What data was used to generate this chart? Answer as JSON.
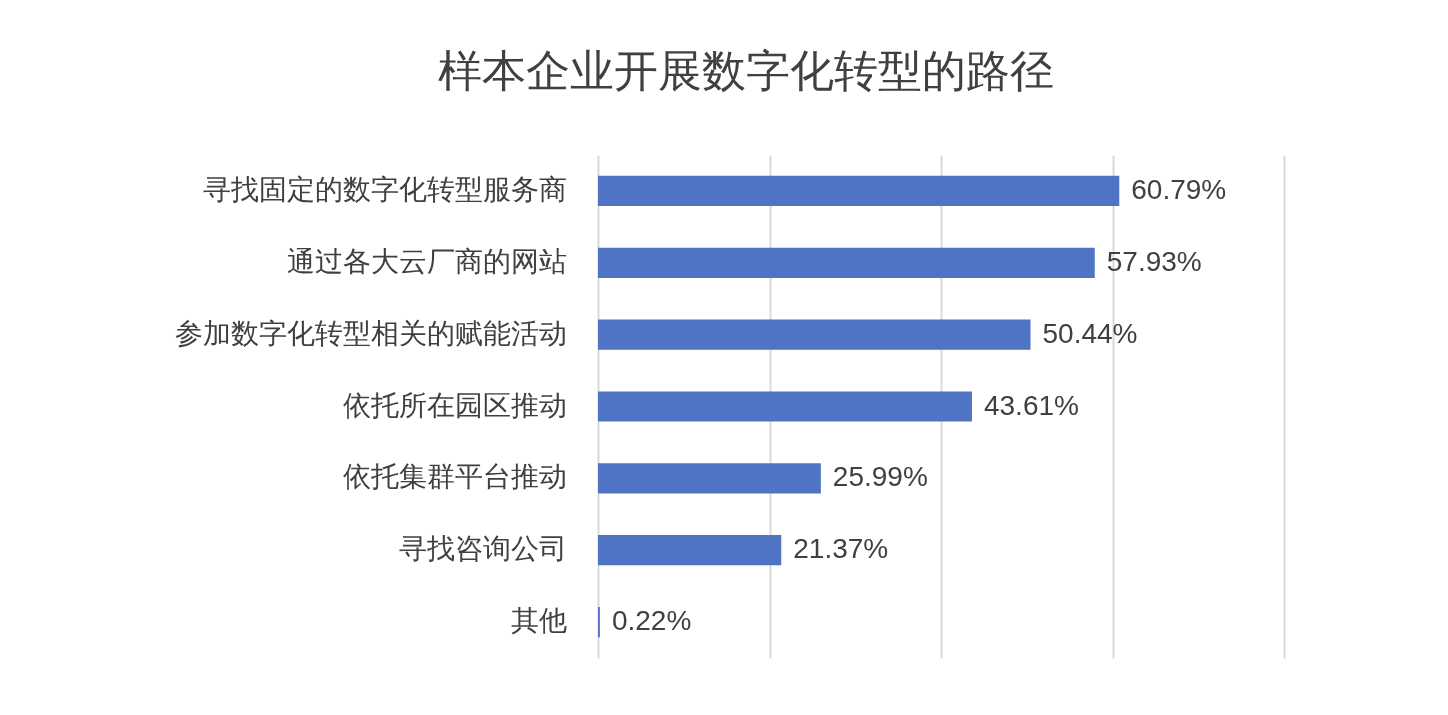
{
  "chart_data": {
    "type": "bar",
    "orientation": "horizontal",
    "title": "样本企业开展数字化转型的路径",
    "categories": [
      "寻找固定的数字化转型服务商",
      "通过各大云厂商的网站",
      "参加数字化转型相关的赋能活动",
      "依托所在园区推动",
      "依托集群平台推动",
      "寻找咨询公司",
      "其他"
    ],
    "values": [
      60.79,
      57.93,
      50.44,
      43.61,
      25.99,
      21.37,
      0.22
    ],
    "value_labels": [
      "60.79%",
      "57.93%",
      "50.44%",
      "43.61%",
      "25.99%",
      "21.37%",
      "0.22%"
    ],
    "color": "#4f74c4",
    "xlim": [
      0,
      80
    ],
    "xticks": [
      {
        "value": 0,
        "label": null
      },
      {
        "value": 20,
        "label": null
      },
      {
        "value": 40,
        "label": null
      },
      {
        "value": 60,
        "label": null
      },
      {
        "value": 80,
        "label": null
      }
    ],
    "tick_labels": "y",
    "grid": "x"
  }
}
